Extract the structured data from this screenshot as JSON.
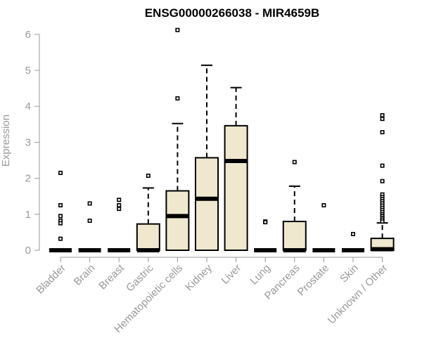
{
  "chart_data": {
    "type": "box",
    "title": "ENSG00000266038 - MIR4659B",
    "xlabel": "",
    "ylabel": "Expression",
    "ylim": [
      0,
      6.2
    ],
    "yticks": [
      "0",
      "1",
      "2",
      "3",
      "4",
      "5",
      "6"
    ],
    "grid": false,
    "colors": {
      "box_fill": "#efe8cf",
      "stroke": "#000000",
      "axis_text": "#999999"
    },
    "categories": [
      "Bladder",
      "Brain",
      "Breast",
      "Gastric",
      "Hematopoietic cells",
      "Kidney",
      "Liver",
      "Lung",
      "Pancreas",
      "Prostate",
      "Skin",
      "Unknown / Other"
    ],
    "boxes": [
      {
        "category": "Bladder",
        "whisker_low": 0,
        "q1": 0,
        "median": 0,
        "q3": 0,
        "whisker_high": 0,
        "outliers": [
          2.15,
          1.25,
          0.95,
          0.82,
          0.75,
          0.32
        ]
      },
      {
        "category": "Brain",
        "whisker_low": 0,
        "q1": 0,
        "median": 0,
        "q3": 0,
        "whisker_high": 0,
        "outliers": [
          1.3,
          0.82
        ]
      },
      {
        "category": "Breast",
        "whisker_low": 0,
        "q1": 0,
        "median": 0,
        "q3": 0,
        "whisker_high": 0,
        "outliers": [
          1.4,
          1.25,
          1.15
        ]
      },
      {
        "category": "Gastric",
        "whisker_low": 0,
        "q1": 0,
        "median": 0,
        "q3": 0.73,
        "whisker_high": 1.73,
        "outliers": [
          2.07
        ]
      },
      {
        "category": "Hematopoietic cells",
        "whisker_low": 0,
        "q1": 0,
        "median": 0.95,
        "q3": 1.65,
        "whisker_high": 3.52,
        "outliers": [
          4.22,
          6.12
        ]
      },
      {
        "category": "Kidney",
        "whisker_low": 0,
        "q1": 0,
        "median": 1.43,
        "q3": 2.57,
        "whisker_high": 5.14,
        "outliers": []
      },
      {
        "category": "Liver",
        "whisker_low": 0,
        "q1": 0,
        "median": 2.48,
        "q3": 3.46,
        "whisker_high": 4.52,
        "outliers": []
      },
      {
        "category": "Lung",
        "whisker_low": 0,
        "q1": 0,
        "median": 0,
        "q3": 0,
        "whisker_high": 0,
        "outliers": [
          0.8,
          0.78
        ]
      },
      {
        "category": "Pancreas",
        "whisker_low": 0,
        "q1": 0,
        "median": 0,
        "q3": 0.8,
        "whisker_high": 1.78,
        "outliers": [
          2.45
        ]
      },
      {
        "category": "Prostate",
        "whisker_low": 0,
        "q1": 0,
        "median": 0,
        "q3": 0,
        "whisker_high": 0,
        "outliers": [
          1.25
        ]
      },
      {
        "category": "Skin",
        "whisker_low": 0,
        "q1": 0,
        "median": 0,
        "q3": 0,
        "whisker_high": 0,
        "outliers": [
          0.45
        ]
      },
      {
        "category": "Unknown / Other",
        "whisker_low": 0,
        "q1": 0,
        "median": 0.03,
        "q3": 0.33,
        "whisker_high": 0.76,
        "outliers": [
          3.75,
          3.65,
          3.28,
          2.35,
          1.92,
          1.55,
          1.48,
          1.42,
          1.36,
          1.3,
          1.24,
          1.18,
          1.12,
          1.06,
          1.0,
          0.95,
          0.9,
          0.85,
          0.8
        ]
      }
    ]
  }
}
